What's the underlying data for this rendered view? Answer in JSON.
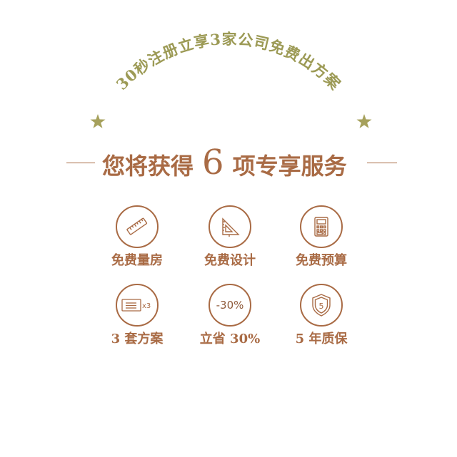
{
  "banner": {
    "arc_text": "30秒注册立享3家公司免费出方案"
  },
  "headline": {
    "prefix": "您将获得",
    "number": "6",
    "suffix": "项专享服务"
  },
  "services": [
    {
      "icon": "ruler-icon",
      "label": "免费量房"
    },
    {
      "icon": "set-square-icon",
      "label": "免费设计"
    },
    {
      "icon": "calculator-icon",
      "label": "免费预算"
    },
    {
      "icon": "document-x3-icon",
      "label": "3 套方案",
      "icon_text": "x3"
    },
    {
      "icon": "discount-icon",
      "label": "立省 30%",
      "icon_text": "-30%"
    },
    {
      "icon": "shield-5-icon",
      "label": "5 年质保",
      "icon_text": "5"
    }
  ],
  "colors": {
    "brown": "#a96b45",
    "olive": "#9c9a55",
    "star": "#a6a15c"
  }
}
